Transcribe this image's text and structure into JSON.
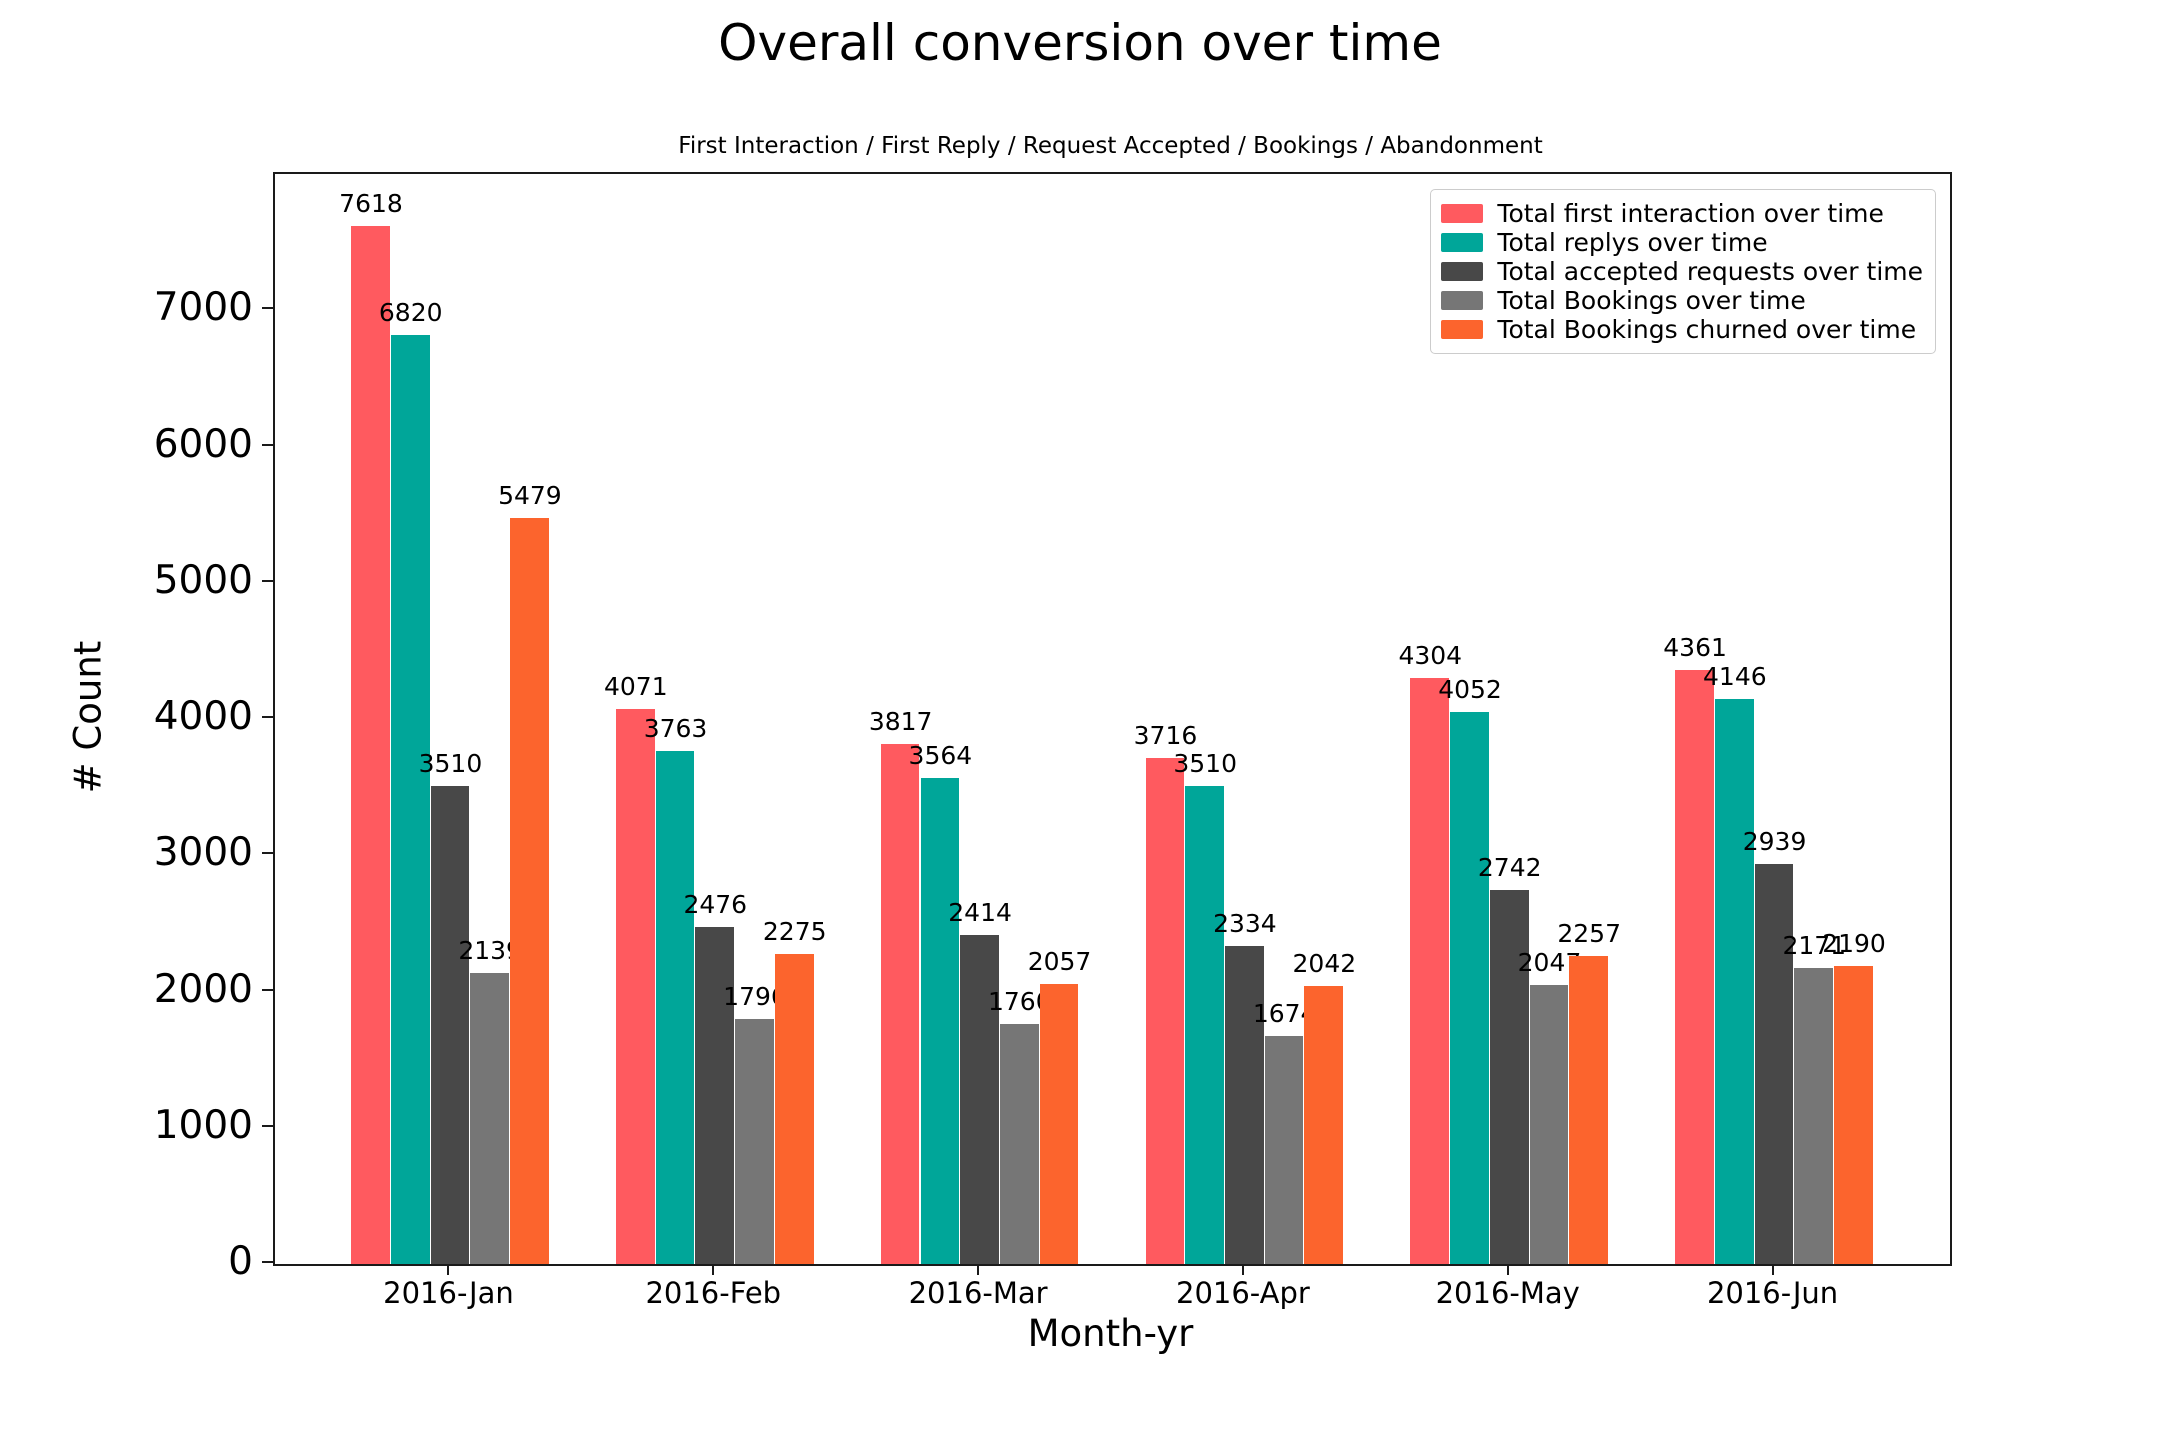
{
  "title": "Overall conversion over time",
  "subtitle": "First Interaction / First Reply / Request Accepted / Bookings / Abandonment",
  "chart_data": {
    "type": "bar",
    "title": "Overall conversion over time",
    "subtitle": "First Interaction / First Reply / Request Accepted / Bookings / Abandonment",
    "xlabel": "Month-yr",
    "ylabel": "# Count",
    "categories": [
      "2016-Jan",
      "2016-Feb",
      "2016-Mar",
      "2016-Apr",
      "2016-May",
      "2016-Jun"
    ],
    "series": [
      {
        "name": "Total first interaction over time",
        "color": "#FF5A5F",
        "values": [
          7618,
          4071,
          3817,
          3716,
          4304,
          4361
        ]
      },
      {
        "name": "Total replys over time",
        "color": "#00A699",
        "values": [
          6820,
          3763,
          3564,
          3510,
          4052,
          4146
        ]
      },
      {
        "name": "Total accepted requests over time",
        "color": "#484848",
        "values": [
          3510,
          2476,
          2414,
          2334,
          2742,
          2939
        ]
      },
      {
        "name": "Total Bookings over time",
        "color": "#767676",
        "values": [
          2139,
          1796,
          1760,
          1674,
          2047,
          2171
        ]
      },
      {
        "name": "Total Bookings churned over time",
        "color": "#FC642D",
        "values": [
          5479,
          2275,
          2057,
          2042,
          2257,
          2190
        ]
      }
    ],
    "yticks": [
      0,
      1000,
      2000,
      3000,
      4000,
      5000,
      6000,
      7000
    ],
    "ylim": [
      0,
      8000
    ],
    "bar_value_labels": true,
    "grid": false,
    "legend_position": "upper right"
  }
}
